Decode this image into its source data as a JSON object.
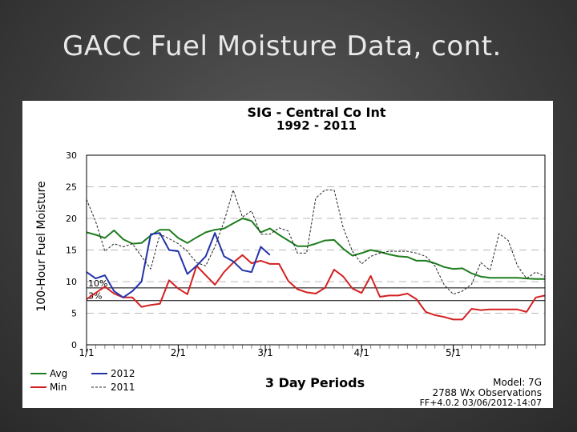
{
  "slide": {
    "title": "GACC Fuel Moisture Data, cont."
  },
  "chart_data": {
    "type": "line",
    "title": "SIG - Central Co Int",
    "subtitle": "1992 - 2011",
    "xlabel": "3 Day Periods",
    "ylabel": "100-Hour Fuel Moisture",
    "ylim": [
      0,
      30
    ],
    "yticks": [
      0,
      5,
      10,
      15,
      20,
      25,
      30
    ],
    "xlim": [
      0,
      50
    ],
    "xticks": [
      {
        "x": 0,
        "label": "1/1"
      },
      {
        "x": 10,
        "label": "2/1"
      },
      {
        "x": 19.5,
        "label": "3/1"
      },
      {
        "x": 30,
        "label": "4/1"
      },
      {
        "x": 40,
        "label": "5/1"
      }
    ],
    "grid": true,
    "reference_lines": [
      {
        "name": "10%",
        "value": 9
      },
      {
        "name": "3%",
        "value": 7
      }
    ],
    "series": [
      {
        "name": "Avg",
        "color": "#1e7d1e",
        "x": [
          0,
          1,
          2,
          3,
          4,
          5,
          6,
          7,
          8,
          9,
          10,
          11,
          12,
          13,
          14,
          15,
          16,
          17,
          18,
          19,
          20,
          21,
          22,
          23,
          24,
          25,
          26,
          27,
          28,
          29,
          30,
          31,
          32,
          33,
          34,
          35,
          36,
          37,
          38,
          39,
          40,
          41,
          42,
          43,
          44,
          45,
          46,
          47,
          48,
          49,
          50
        ],
        "y": [
          17.8,
          17.4,
          16.9,
          18.1,
          16.7,
          16.0,
          16.1,
          17.3,
          18.2,
          18.2,
          16.9,
          16.1,
          17.0,
          17.8,
          18.2,
          18.4,
          19.2,
          20.0,
          19.6,
          17.8,
          18.4,
          17.4,
          16.5,
          15.6,
          15.6,
          16.0,
          16.5,
          16.6,
          15.2,
          14.1,
          14.5,
          15.0,
          14.7,
          14.3,
          14.0,
          13.9,
          13.3,
          13.3,
          12.9,
          12.3,
          12.0,
          12.1,
          11.3,
          10.8,
          10.6,
          10.6,
          10.6,
          10.6,
          10.5,
          10.4,
          10.4
        ]
      },
      {
        "name": "Min",
        "color": "#d42020",
        "x": [
          0,
          1,
          2,
          3,
          4,
          5,
          6,
          7,
          8,
          9,
          10,
          11,
          12,
          13,
          14,
          15,
          16,
          17,
          18,
          19,
          20,
          21,
          22,
          23,
          24,
          25,
          26,
          27,
          28,
          29,
          30,
          31,
          32,
          33,
          34,
          35,
          36,
          37,
          38,
          39,
          40,
          41,
          42,
          43,
          44,
          45,
          46,
          47,
          48,
          49,
          50
        ],
        "y": [
          7.2,
          8.2,
          9.2,
          8.1,
          7.5,
          7.5,
          6.0,
          6.3,
          6.5,
          10.2,
          8.9,
          8.0,
          12.5,
          11.0,
          9.5,
          11.5,
          13.0,
          14.2,
          12.9,
          13.3,
          12.8,
          12.8,
          10.1,
          8.8,
          8.3,
          8.1,
          9.0,
          11.9,
          10.8,
          8.9,
          8.2,
          10.9,
          7.6,
          7.8,
          7.8,
          8.1,
          7.2,
          5.2,
          4.7,
          4.4,
          4.0,
          4.0,
          5.7,
          5.5,
          5.6,
          5.6,
          5.6,
          5.6,
          5.2,
          7.5,
          7.8
        ]
      },
      {
        "name": "2012",
        "color": "#2233aa",
        "x": [
          0,
          1,
          2,
          3,
          4,
          5,
          6,
          7,
          8,
          9,
          10,
          11,
          12,
          13,
          14,
          15,
          16,
          17,
          18,
          19,
          20
        ],
        "y": [
          11.5,
          10.5,
          11.0,
          8.5,
          7.5,
          8.5,
          10.0,
          17.5,
          17.7,
          15.0,
          14.8,
          11.2,
          12.5,
          14.0,
          17.7,
          14.0,
          13.2,
          11.8,
          11.5,
          15.5,
          14.2
        ]
      },
      {
        "name": "2011",
        "color": "#222222",
        "dashed": true,
        "x": [
          0,
          1,
          2,
          3,
          4,
          5,
          6,
          7,
          8,
          9,
          10,
          11,
          12,
          13,
          14,
          15,
          16,
          17,
          18,
          19,
          20,
          21,
          22,
          23,
          24,
          25,
          26,
          27,
          28,
          29,
          30,
          31,
          32,
          33,
          34,
          35,
          36,
          37,
          38,
          39,
          40,
          41,
          42,
          43,
          44,
          45,
          46,
          47,
          48,
          49,
          50
        ],
        "y": [
          23.0,
          19.5,
          14.8,
          16.0,
          15.5,
          16.0,
          14.0,
          12.0,
          17.5,
          16.8,
          16.0,
          14.8,
          13.0,
          12.5,
          15.5,
          19.5,
          24.5,
          20.2,
          21.2,
          17.5,
          17.5,
          18.5,
          18.0,
          14.5,
          14.5,
          23.2,
          24.5,
          24.5,
          18.5,
          14.8,
          12.8,
          14.0,
          14.5,
          14.8,
          14.8,
          14.8,
          14.5,
          14.0,
          12.5,
          9.5,
          8.0,
          8.5,
          9.6,
          13.0,
          11.8,
          17.6,
          16.5,
          12.5,
          10.5,
          11.5,
          10.8
        ]
      }
    ],
    "legend": [
      {
        "name": "Avg",
        "color": "#1e7d1e",
        "dashed": false
      },
      {
        "name": "Min",
        "color": "#d42020",
        "dashed": false
      },
      {
        "name": "2012",
        "color": "#2233aa",
        "dashed": false
      },
      {
        "name": "2011",
        "color": "#222222",
        "dashed": true
      }
    ],
    "annotations": {
      "model": "Model: 7G",
      "observations": "2788 Wx Observations",
      "footer": "FF+4.0.2 03/06/2012-14:07"
    }
  }
}
